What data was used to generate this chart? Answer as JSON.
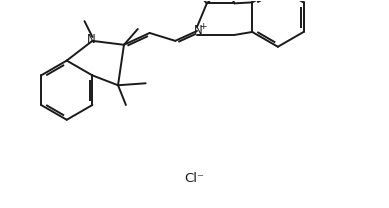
{
  "background_color": "#ffffff",
  "line_color": "#1a1a1a",
  "line_width": 1.4,
  "font_size": 8.5,
  "cl_label": "Cl⁻"
}
